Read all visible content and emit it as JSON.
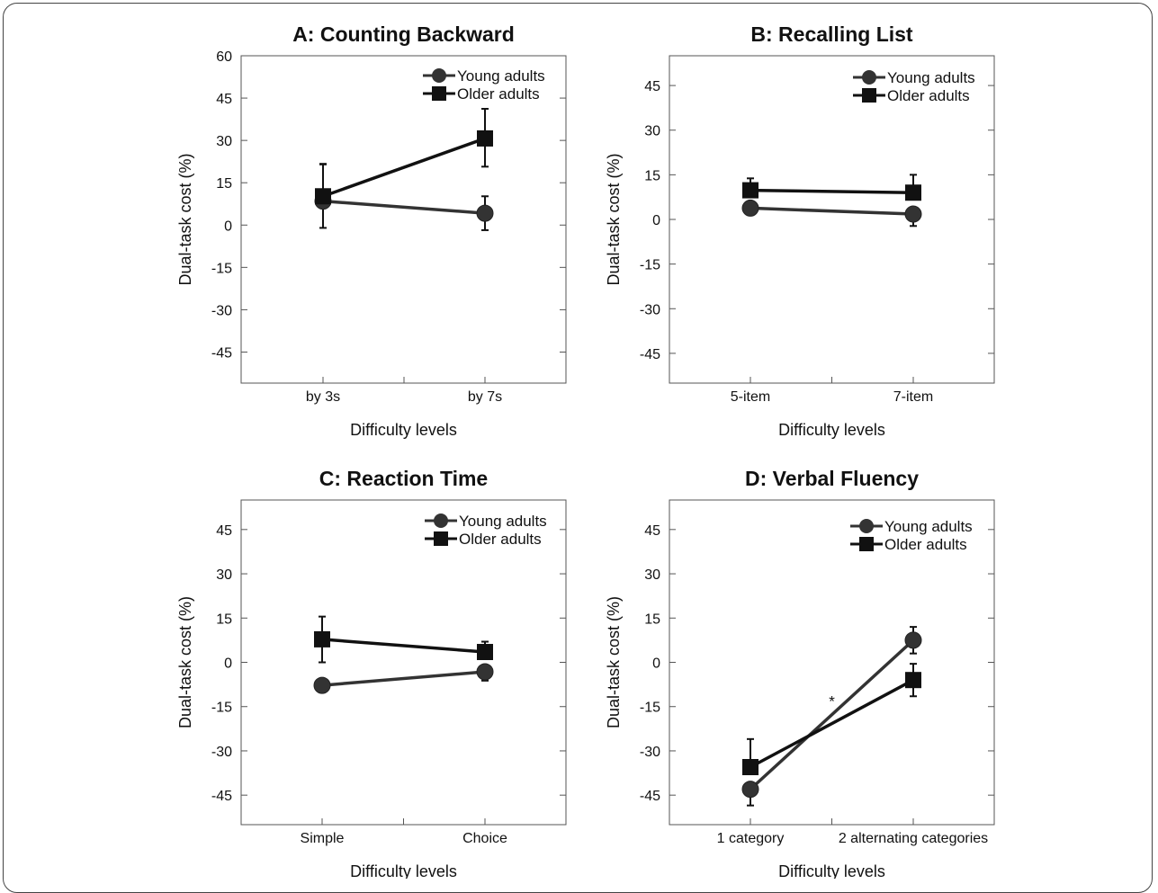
{
  "chart_data": [
    {
      "type": "line",
      "title": "A: Counting Backward",
      "xlabel": "Difficulty levels",
      "ylabel": "Dual-task cost (%)",
      "categories": [
        "by 3s",
        "by 7s"
      ],
      "yticks": [
        60,
        45,
        30,
        15,
        0,
        -15,
        -30,
        -45
      ],
      "ylim": [
        -56,
        60
      ],
      "legend_position": "top-right",
      "grid": false,
      "series": [
        {
          "name": "Young adults",
          "marker": "circle",
          "color": "#333333",
          "values": [
            8.5,
            4.2
          ],
          "err_up": [
            13,
            6
          ],
          "err_down": [
            9.5,
            6
          ]
        },
        {
          "name": "Older adults",
          "marker": "square",
          "color": "#111111",
          "values": [
            10.2,
            30.7
          ],
          "err_up": [
            11.5,
            10.5
          ],
          "err_down": [
            0,
            10
          ]
        }
      ],
      "annotations": []
    },
    {
      "type": "line",
      "title": "B: Recalling List",
      "xlabel": "Difficulty levels",
      "ylabel": "Dual-task cost (%)",
      "categories": [
        "5-item",
        "7-item"
      ],
      "yticks": [
        45,
        30,
        15,
        0,
        -15,
        -30,
        -45
      ],
      "ylim": [
        -55,
        55
      ],
      "legend_position": "top-right",
      "grid": false,
      "series": [
        {
          "name": "Young adults",
          "marker": "circle",
          "color": "#333333",
          "values": [
            3.8,
            1.8
          ],
          "err_up": [
            0,
            0
          ],
          "err_down": [
            0,
            4
          ]
        },
        {
          "name": "Older adults",
          "marker": "square",
          "color": "#111111",
          "values": [
            9.8,
            9.0
          ],
          "err_up": [
            4,
            6
          ],
          "err_down": [
            0,
            0
          ]
        }
      ],
      "annotations": []
    },
    {
      "type": "line",
      "title": "C: Reaction Time",
      "xlabel": "Difficulty levels",
      "ylabel": "Dual-task cost (%)",
      "categories": [
        "Simple",
        "Choice"
      ],
      "yticks": [
        45,
        30,
        15,
        0,
        -15,
        -30,
        -45
      ],
      "ylim": [
        -55,
        55
      ],
      "legend_position": "top-right",
      "grid": false,
      "series": [
        {
          "name": "Young adults",
          "marker": "circle",
          "color": "#333333",
          "values": [
            -7.8,
            -3.2
          ],
          "err_up": [
            0,
            0
          ],
          "err_down": [
            0,
            3
          ]
        },
        {
          "name": "Older adults",
          "marker": "square",
          "color": "#111111",
          "values": [
            7.8,
            3.5
          ],
          "err_up": [
            7.7,
            3.5
          ],
          "err_down": [
            7.8,
            0
          ]
        }
      ],
      "annotations": []
    },
    {
      "type": "line",
      "title": "D: Verbal Fluency",
      "xlabel": "Difficulty levels",
      "ylabel": "Dual-task cost (%)",
      "categories": [
        "1 category",
        "2 alternating categories"
      ],
      "yticks": [
        45,
        30,
        15,
        0,
        -15,
        -30,
        -45
      ],
      "ylim": [
        -55,
        55
      ],
      "legend_position": "top-right",
      "grid": false,
      "series": [
        {
          "name": "Young adults",
          "marker": "circle",
          "color": "#333333",
          "values": [
            -43.0,
            7.5
          ],
          "err_up": [
            0,
            4.5
          ],
          "err_down": [
            5.5,
            4.5
          ]
        },
        {
          "name": "Older adults",
          "marker": "square",
          "color": "#111111",
          "values": [
            -35.5,
            -6.0
          ],
          "err_up": [
            9.5,
            5.5
          ],
          "err_down": [
            0,
            5.5
          ]
        }
      ],
      "annotations": [
        {
          "text": "*",
          "x": 0.5,
          "y": -15
        }
      ]
    }
  ]
}
